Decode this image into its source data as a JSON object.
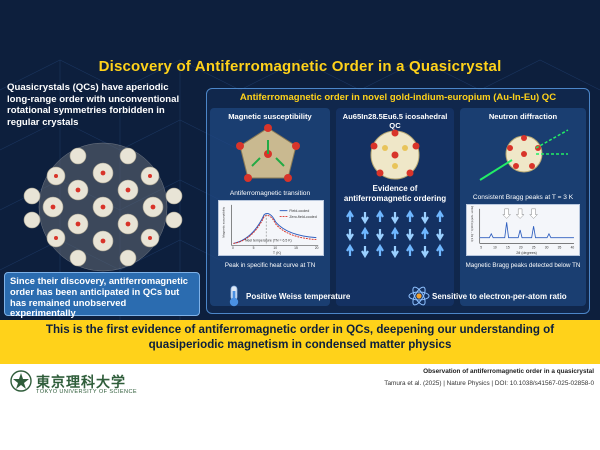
{
  "title": "Discovery of Antiferromagnetic Order in a Quasicrystal",
  "intro": "Quasicrystals (QCs) have aperiodic long-range order with unconventional rotational symmetries forbidden in regular crystals",
  "since": "Since their discovery, antiferromagnetic order has been anticipated in QCs but has remained unobserved experimentally",
  "panel": {
    "title": "Antiferromagnetic order in novel gold-indium-europium (Au-In-Eu) QC",
    "col1": {
      "head": "Magnetic susceptibility",
      "chart_title": "Antiferromagnetic transition",
      "legend_fc": "Field-cooled",
      "legend_zfc": "Zero-field-cooled",
      "neel": "Néel temperature (TN = 6.5 K)",
      "ylabel": "Magnetic susceptibility",
      "xlabel": "T (K)",
      "xticks": [
        "0",
        "5",
        "10",
        "15",
        "20"
      ],
      "caption": "Peak in specific heat curve at TN"
    },
    "col2": {
      "head": "Au65In28.5Eu6.5 icosahedral QC",
      "evidence": "Evidence of antiferromagnetic ordering"
    },
    "col3": {
      "head": "Neutron diffraction",
      "chart_title": "Consistent Bragg peaks at T = 3 K",
      "ylabel": "I(3 K) − I(30 K) (arb. units)",
      "xlabel": "2θ (degrees)",
      "xticks": [
        "5",
        "10",
        "15",
        "20",
        "25",
        "30",
        "35",
        "40"
      ],
      "caption": "Magnetic Bragg peaks detected below TN"
    },
    "weiss": "Positive Weiss temperature",
    "sensitive": "Sensitive to electron-per-atom ratio"
  },
  "banner": "This is the first evidence of antiferromagnetic order in QCs, deepening our understanding of quasiperiodic magnetism in condensed matter physics",
  "footer": {
    "logo": "東京理科大学",
    "logo_sub": "TOKYO UNIVERSITY OF SCIENCE",
    "ref_title": "Observation of antiferromagnetic order in a quasicrystal",
    "ref": "Tamura et al. (2025) | Nature Physics | DOI: 10.1038/s41567-025-02858-0"
  },
  "colors": {
    "navy": "#0d1f3d",
    "gold": "#ffd21a",
    "panel_blue": "#2b6cb0",
    "accent_red": "#d8342a"
  }
}
